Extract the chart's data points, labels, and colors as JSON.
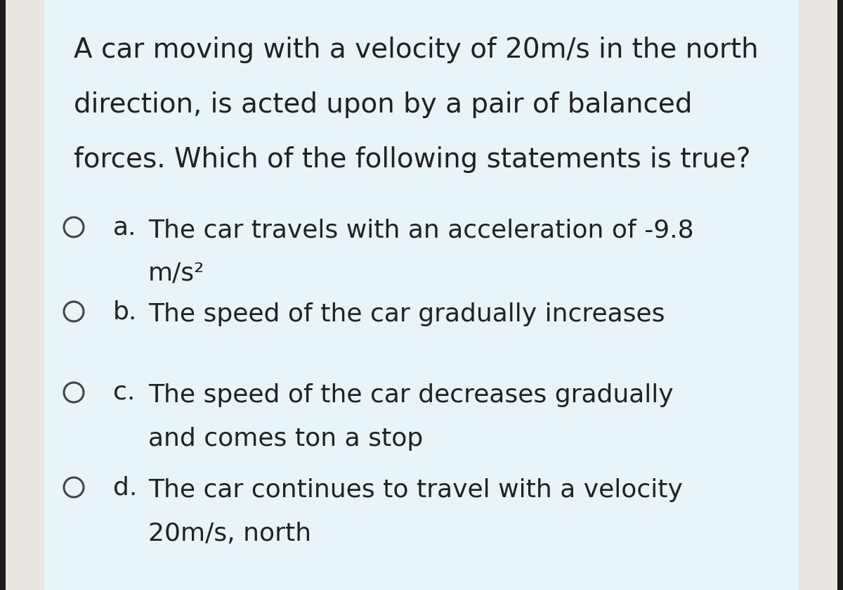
{
  "outer_bg": "#1a1a1a",
  "strip_color": "#eae6e1",
  "card_color": "#e8f4f8",
  "text_color": "#222222",
  "question_lines": [
    "A car moving with a velocity of 20m/s in the north",
    "direction, is acted upon by a pair of balanced",
    "forces. Which of the following statements is true?"
  ],
  "options": [
    {
      "label": "a.",
      "lines": [
        "The car travels with an acceleration of -9.8",
        "m/s²"
      ]
    },
    {
      "label": "b.",
      "lines": [
        "The speed of the car gradually increases"
      ]
    },
    {
      "label": "c.",
      "lines": [
        "The speed of the car decreases gradually",
        "and comes ton a stop"
      ]
    },
    {
      "label": "d.",
      "lines": [
        "The car continues to travel with a velocity",
        "20m/s, north"
      ]
    }
  ],
  "font_size_question": 28,
  "font_size_option": 26,
  "figsize": [
    12.0,
    8.39
  ],
  "dpi": 100
}
